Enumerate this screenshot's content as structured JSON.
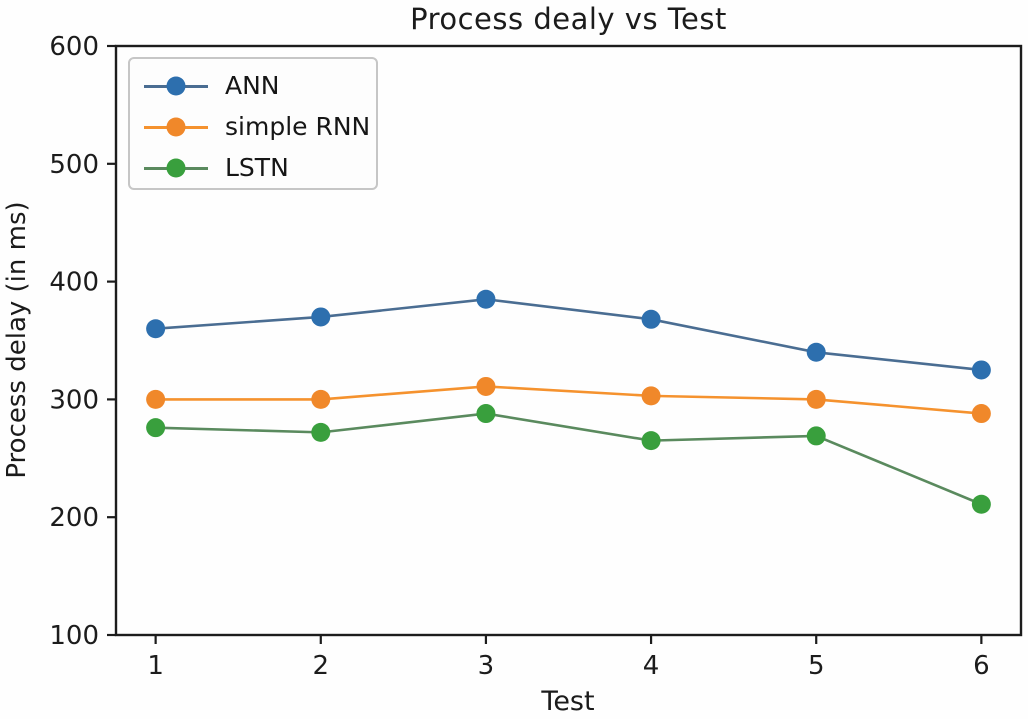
{
  "chart_data": {
    "type": "line",
    "title": "Process dealy vs Test",
    "xlabel": "Test",
    "ylabel": "Process delay (in ms)",
    "x": [
      1,
      2,
      3,
      4,
      5,
      6
    ],
    "xticks": [
      1,
      2,
      3,
      4,
      5,
      6
    ],
    "yticks": [
      100,
      200,
      300,
      400,
      500,
      600
    ],
    "xlim": [
      0.76,
      6.24
    ],
    "ylim": [
      100,
      600
    ],
    "grid": false,
    "legend_position": "upper left",
    "axis_color": "#1c1c1c",
    "series": [
      {
        "name": "ANN",
        "color": "#2d6fae",
        "line_color": "#4a6d92",
        "values": [
          360,
          370,
          385,
          368,
          340,
          325
        ]
      },
      {
        "name": "simple RNN",
        "color": "#f0882a",
        "line_color": "#f5922e",
        "values": [
          300,
          300,
          311,
          303,
          300,
          288
        ]
      },
      {
        "name": "LSTN",
        "color": "#399f3d",
        "line_color": "#5a8a5e",
        "values": [
          276,
          272,
          288,
          265,
          269,
          211
        ]
      }
    ]
  }
}
